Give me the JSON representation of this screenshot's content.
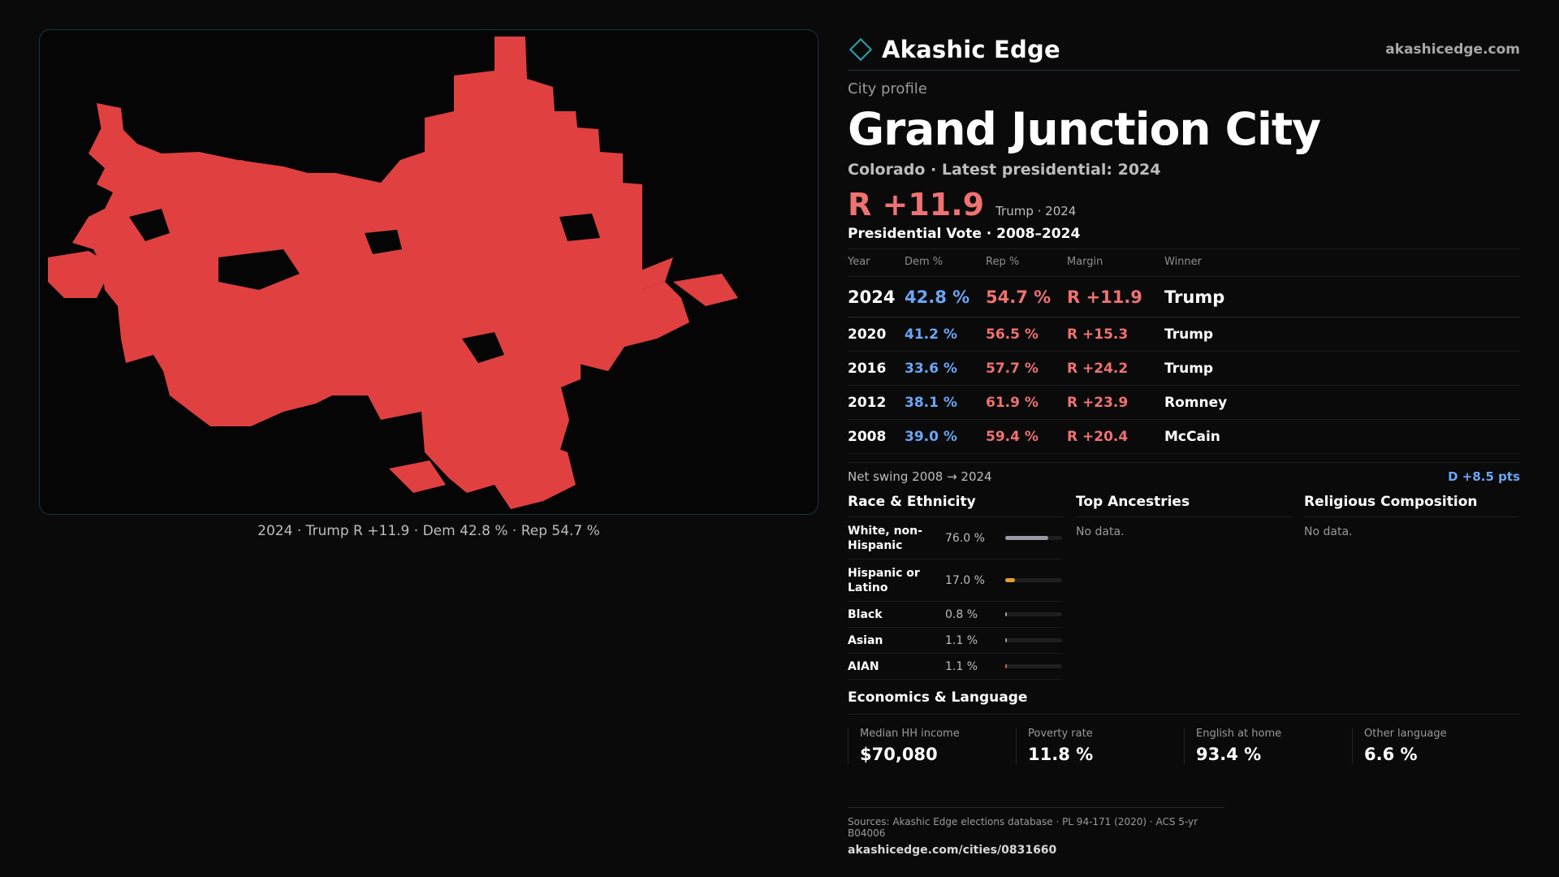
{
  "brand": {
    "name": "Akashic Edge",
    "site": "akashicedge.com",
    "logo_icon": "diamond-logo-icon"
  },
  "profile": {
    "kicker": "City profile",
    "title": "Grand Junction City",
    "subtitle": "Colorado · Latest presidential: 2024",
    "margin": "R +11.9",
    "margin_note": "Trump · 2024"
  },
  "map": {
    "caption": "2024 · Trump R +11.9 · Dem 42.8 % · Rep 54.7 %",
    "fill_color": "#e04040"
  },
  "votes": {
    "title": "Presidential Vote · 2008–2024",
    "headers": [
      "Year",
      "Dem %",
      "Rep %",
      "Margin",
      "Winner"
    ],
    "rows": [
      {
        "year": "2024",
        "dem": "42.8 %",
        "rep": "54.7 %",
        "margin": "R +11.9",
        "winner": "Trump"
      },
      {
        "year": "2020",
        "dem": "41.2 %",
        "rep": "56.5 %",
        "margin": "R +15.3",
        "winner": "Trump"
      },
      {
        "year": "2016",
        "dem": "33.6 %",
        "rep": "57.7 %",
        "margin": "R +24.2",
        "winner": "Trump"
      },
      {
        "year": "2012",
        "dem": "38.1 %",
        "rep": "61.9 %",
        "margin": "R +23.9",
        "winner": "Romney"
      },
      {
        "year": "2008",
        "dem": "39.0 %",
        "rep": "59.4 %",
        "margin": "R +20.4",
        "winner": "McCain"
      }
    ],
    "swing_label": "Net swing 2008 → 2024",
    "swing_value": "D +8.5 pts"
  },
  "race": {
    "title": "Race & Ethnicity",
    "rows": [
      {
        "label": "White, non-Hispanic",
        "value": "76.0 %",
        "pct": 76.0,
        "color": "#9a9aa8"
      },
      {
        "label": "Hispanic or Latino",
        "value": "17.0 %",
        "pct": 17.0,
        "color": "#e0a030"
      },
      {
        "label": "Black",
        "value": "0.8 %",
        "pct": 0.8,
        "color": "#9a9aa8"
      },
      {
        "label": "Asian",
        "value": "1.1 %",
        "pct": 1.1,
        "color": "#9a9aa8"
      },
      {
        "label": "AIAN",
        "value": "1.1 %",
        "pct": 1.1,
        "color": "#c07040"
      }
    ]
  },
  "ancestries": {
    "title": "Top Ancestries",
    "empty": "No data."
  },
  "religion": {
    "title": "Religious Composition",
    "empty": "No data."
  },
  "economics": {
    "title": "Economics & Language",
    "cells": [
      {
        "label": "Median HH income",
        "value": "$70,080"
      },
      {
        "label": "Poverty rate",
        "value": "11.8 %"
      },
      {
        "label": "English at home",
        "value": "93.4 %"
      },
      {
        "label": "Other language",
        "value": "6.6 %"
      }
    ]
  },
  "footer": {
    "sources": "Sources: Akashic Edge elections database · PL 94-171 (2020) · ACS 5-yr B04006",
    "url": "akashicedge.com/cities/0831660"
  }
}
